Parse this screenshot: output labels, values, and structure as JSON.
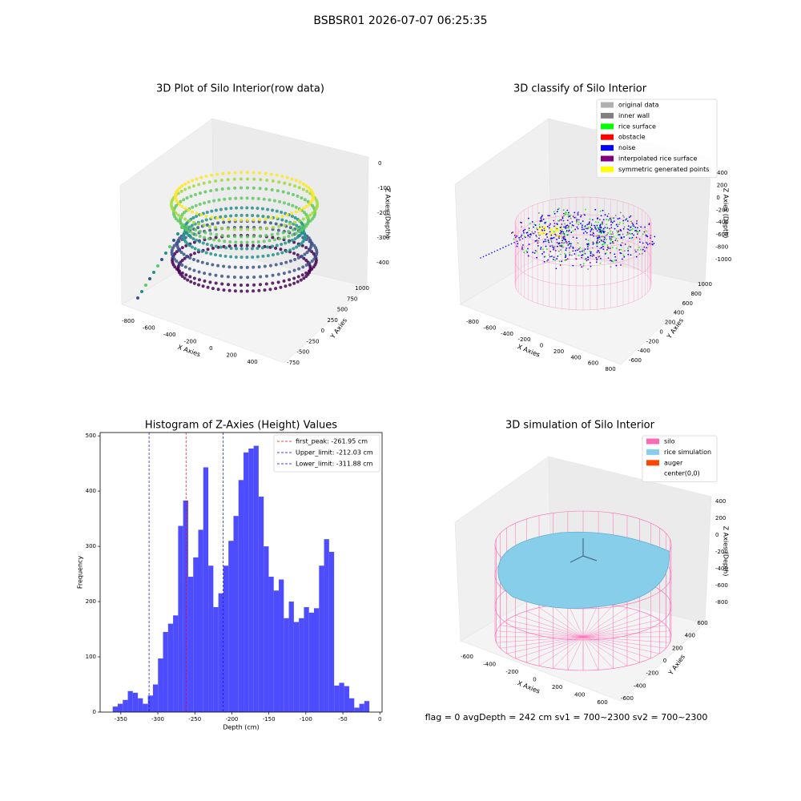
{
  "title": "BSBSR01 2026-07-07 06:25:35",
  "footer": "flag = 0     avgDepth = 242 cm  sv1 = 700~2300  sv2 = 700~2300",
  "chart_data": [
    {
      "type": "scatter3d",
      "title": "3D Plot of Silo Interior(row data)",
      "x_label": "X Axies",
      "y_label": "Y Axies",
      "z_label": "Z Axies (Depth)",
      "xticks": [
        -800,
        -600,
        -400,
        -200,
        0,
        200,
        400
      ],
      "yticks": [
        -750,
        -500,
        -250,
        0,
        250,
        500,
        750,
        1000
      ],
      "zticks": [
        0,
        -100,
        -200,
        -300,
        -400
      ]
    },
    {
      "type": "scatter3d",
      "title": "3D classify of Silo Interior",
      "x_label": "X Axies",
      "y_label": "Y Axies",
      "z_label": "Z Axies (Depth)",
      "xticks": [
        -800,
        -600,
        -400,
        -200,
        0,
        200,
        400,
        600,
        800
      ],
      "yticks": [
        -600,
        -400,
        -200,
        0,
        200,
        400,
        600,
        800,
        1000
      ],
      "zticks": [
        400,
        200,
        0,
        -200,
        -400,
        -600,
        -800,
        -1000
      ],
      "legend_entries": [
        {
          "name": "original data",
          "color": "#b0b0b0"
        },
        {
          "name": "inner wall",
          "color": "#808080"
        },
        {
          "name": "rice surface",
          "color": "#00ff00"
        },
        {
          "name": "obstacle",
          "color": "#ff0000"
        },
        {
          "name": "noise",
          "color": "#0000ff"
        },
        {
          "name": "interpolated rice surface",
          "color": "#800080"
        },
        {
          "name": "symmetric generated points",
          "color": "#ffff00"
        }
      ]
    },
    {
      "type": "histogram",
      "title": "Histogram of Z-Axies (Height) Values",
      "x_label": "Depth (cm)",
      "y_label": "Frequency",
      "color": "#4d4dff",
      "bins": [
        -361.0,
        -354.2,
        -347.4,
        -340.6,
        -333.8,
        -327.0,
        -320.2,
        -313.4,
        -306.6,
        -299.8,
        -293.0,
        -286.2,
        -279.4,
        -272.6,
        -265.8,
        -259.0,
        -252.2,
        -245.4,
        -238.6,
        -231.8,
        -225.0,
        -218.2,
        -211.4,
        -204.6,
        -197.8,
        -191.0,
        -184.2,
        -177.4,
        -170.6,
        -163.8,
        -157.0,
        -150.2,
        -143.4,
        -136.6,
        -129.8,
        -123.0,
        -116.2,
        -109.4,
        -102.6,
        -95.8,
        -89.0,
        -82.2,
        -75.4,
        -68.6,
        -61.8,
        -55.0,
        -48.2,
        -41.4,
        -34.6,
        -27.8,
        -21.0,
        -14.2
      ],
      "values": [
        10,
        15,
        22,
        38,
        35,
        25,
        15,
        30,
        50,
        97,
        145,
        160,
        175,
        337,
        383,
        245,
        280,
        330,
        443,
        265,
        190,
        215,
        265,
        310,
        355,
        420,
        470,
        477,
        482,
        390,
        300,
        245,
        220,
        240,
        170,
        200,
        163,
        170,
        190,
        180,
        188,
        265,
        313,
        290,
        48,
        53,
        47,
        25,
        8,
        15,
        20
      ],
      "xlim": [
        -378,
        3
      ],
      "ylim": [
        0,
        506
      ],
      "xticks": [
        -350,
        -300,
        -250,
        -200,
        -150,
        -100,
        -50,
        0
      ],
      "yticks": [
        0,
        100,
        200,
        300,
        400,
        500
      ],
      "vlines": [
        {
          "label": "first_peak: -261.95 cm",
          "value": -261.95,
          "color": "#ff0000"
        },
        {
          "label": "Upper_limit: -212.03 cm",
          "value": -212.03,
          "color": "#0000ff"
        },
        {
          "label": "Lower_limit: -311.88 cm",
          "value": -311.88,
          "color": "#0000ff"
        }
      ]
    },
    {
      "type": "surface3d",
      "title": "3D simulation of Silo Interior",
      "x_label": "X Axies",
      "y_label": "Y Axies",
      "z_label": "Z Axies (Depth)",
      "xticks": [
        -600,
        -400,
        -200,
        0,
        200,
        400,
        600
      ],
      "yticks": [
        -600,
        -400,
        -200,
        0,
        200,
        400,
        600
      ],
      "zticks": [
        400,
        200,
        0,
        -200,
        -400,
        -600,
        -800
      ],
      "legend_entries": [
        {
          "name": "silo",
          "color": "#ff69b4"
        },
        {
          "name": "rice simulation",
          "color": "#87ceeb"
        },
        {
          "name": "auger",
          "color": "#ff4500"
        },
        {
          "name": "center(0,0)",
          "color": "#ffffff"
        }
      ]
    }
  ]
}
